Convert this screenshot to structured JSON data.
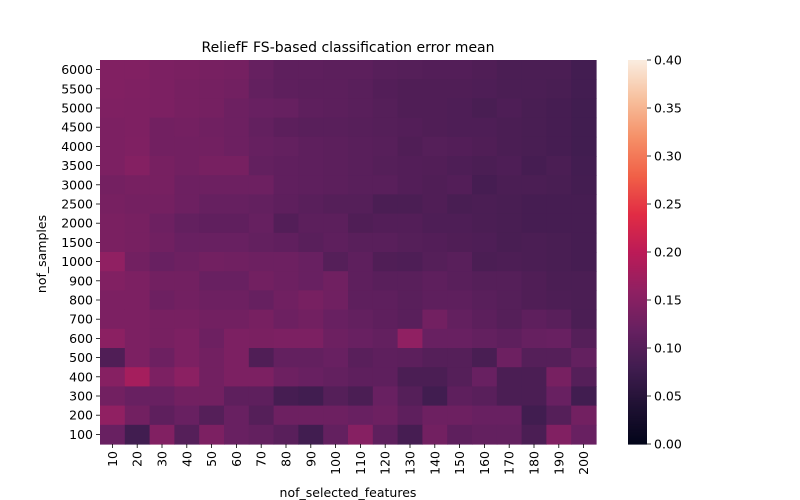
{
  "chart_data": {
    "type": "heatmap",
    "title": "ReliefF FS-based classification error mean",
    "xlabel": "nof_selected_features",
    "ylabel": "nof_samples",
    "x_categories": [
      "10",
      "20",
      "30",
      "40",
      "50",
      "60",
      "70",
      "80",
      "90",
      "100",
      "110",
      "120",
      "130",
      "140",
      "150",
      "160",
      "170",
      "180",
      "190",
      "200"
    ],
    "y_categories": [
      "6000",
      "5500",
      "5000",
      "4500",
      "4000",
      "3500",
      "3000",
      "2500",
      "2000",
      "1500",
      "1000",
      "900",
      "800",
      "700",
      "600",
      "500",
      "400",
      "300",
      "200",
      "100"
    ],
    "value_range": [
      0.0,
      0.4
    ],
    "colormap": "rocket",
    "colorbar_ticks": [
      "0.00",
      "0.05",
      "0.10",
      "0.15",
      "0.20",
      "0.25",
      "0.30",
      "0.35",
      "0.40"
    ],
    "values": [
      [
        0.145,
        0.145,
        0.14,
        0.138,
        0.135,
        0.133,
        0.118,
        0.11,
        0.11,
        0.108,
        0.108,
        0.103,
        0.1,
        0.098,
        0.098,
        0.095,
        0.09,
        0.09,
        0.09,
        0.082
      ],
      [
        0.145,
        0.143,
        0.14,
        0.135,
        0.133,
        0.13,
        0.115,
        0.11,
        0.108,
        0.108,
        0.105,
        0.098,
        0.095,
        0.095,
        0.095,
        0.093,
        0.09,
        0.09,
        0.088,
        0.082
      ],
      [
        0.143,
        0.142,
        0.14,
        0.135,
        0.133,
        0.125,
        0.12,
        0.118,
        0.11,
        0.108,
        0.105,
        0.1,
        0.095,
        0.095,
        0.093,
        0.088,
        0.093,
        0.088,
        0.085,
        0.08
      ],
      [
        0.14,
        0.142,
        0.13,
        0.132,
        0.128,
        0.125,
        0.115,
        0.108,
        0.105,
        0.105,
        0.103,
        0.1,
        0.098,
        0.095,
        0.093,
        0.093,
        0.09,
        0.088,
        0.085,
        0.08
      ],
      [
        0.14,
        0.143,
        0.13,
        0.13,
        0.13,
        0.125,
        0.118,
        0.115,
        0.11,
        0.108,
        0.105,
        0.103,
        0.095,
        0.1,
        0.098,
        0.095,
        0.09,
        0.088,
        0.085,
        0.08
      ],
      [
        0.14,
        0.148,
        0.135,
        0.13,
        0.135,
        0.135,
        0.115,
        0.112,
        0.11,
        0.108,
        0.105,
        0.1,
        0.098,
        0.097,
        0.093,
        0.09,
        0.093,
        0.085,
        0.09,
        0.082
      ],
      [
        0.132,
        0.135,
        0.135,
        0.125,
        0.125,
        0.125,
        0.125,
        0.112,
        0.11,
        0.108,
        0.105,
        0.105,
        0.098,
        0.095,
        0.098,
        0.085,
        0.09,
        0.09,
        0.088,
        0.083
      ],
      [
        0.135,
        0.132,
        0.132,
        0.125,
        0.118,
        0.118,
        0.115,
        0.11,
        0.105,
        0.1,
        0.1,
        0.09,
        0.09,
        0.095,
        0.088,
        0.09,
        0.088,
        0.085,
        0.085,
        0.085
      ],
      [
        0.138,
        0.135,
        0.125,
        0.115,
        0.112,
        0.112,
        0.118,
        0.098,
        0.108,
        0.108,
        0.095,
        0.098,
        0.098,
        0.093,
        0.093,
        0.09,
        0.088,
        0.085,
        0.085,
        0.085
      ],
      [
        0.138,
        0.135,
        0.128,
        0.12,
        0.12,
        0.12,
        0.115,
        0.112,
        0.105,
        0.11,
        0.105,
        0.105,
        0.1,
        0.098,
        0.095,
        0.093,
        0.088,
        0.09,
        0.088,
        0.085
      ],
      [
        0.16,
        0.13,
        0.12,
        0.125,
        0.13,
        0.128,
        0.125,
        0.125,
        0.12,
        0.1,
        0.11,
        0.095,
        0.093,
        0.1,
        0.105,
        0.09,
        0.092,
        0.09,
        0.088,
        0.085
      ],
      [
        0.145,
        0.14,
        0.13,
        0.13,
        0.12,
        0.12,
        0.13,
        0.125,
        0.12,
        0.128,
        0.11,
        0.105,
        0.105,
        0.11,
        0.105,
        0.1,
        0.1,
        0.095,
        0.09,
        0.09
      ],
      [
        0.14,
        0.14,
        0.125,
        0.13,
        0.125,
        0.125,
        0.118,
        0.128,
        0.135,
        0.128,
        0.11,
        0.11,
        0.105,
        0.11,
        0.11,
        0.105,
        0.1,
        0.095,
        0.092,
        0.09
      ],
      [
        0.14,
        0.14,
        0.135,
        0.135,
        0.13,
        0.13,
        0.135,
        0.125,
        0.13,
        0.12,
        0.115,
        0.11,
        0.105,
        0.13,
        0.115,
        0.108,
        0.1,
        0.11,
        0.105,
        0.09
      ],
      [
        0.155,
        0.14,
        0.135,
        0.14,
        0.125,
        0.14,
        0.138,
        0.14,
        0.14,
        0.125,
        0.12,
        0.115,
        0.16,
        0.12,
        0.12,
        0.115,
        0.11,
        0.118,
        0.12,
        0.1
      ],
      [
        0.095,
        0.14,
        0.125,
        0.14,
        0.13,
        0.14,
        0.095,
        0.115,
        0.115,
        0.12,
        0.105,
        0.11,
        0.108,
        0.1,
        0.1,
        0.088,
        0.125,
        0.1,
        0.1,
        0.115
      ],
      [
        0.15,
        0.18,
        0.14,
        0.155,
        0.13,
        0.14,
        0.14,
        0.125,
        0.12,
        0.115,
        0.11,
        0.11,
        0.09,
        0.09,
        0.1,
        0.12,
        0.09,
        0.09,
        0.135,
        0.1
      ],
      [
        0.13,
        0.12,
        0.12,
        0.13,
        0.13,
        0.11,
        0.11,
        0.085,
        0.08,
        0.1,
        0.09,
        0.12,
        0.1,
        0.08,
        0.11,
        0.105,
        0.09,
        0.09,
        0.12,
        0.08
      ],
      [
        0.16,
        0.13,
        0.11,
        0.12,
        0.1,
        0.12,
        0.1,
        0.125,
        0.125,
        0.125,
        0.12,
        0.125,
        0.11,
        0.125,
        0.125,
        0.12,
        0.12,
        0.08,
        0.1,
        0.13
      ],
      [
        0.12,
        0.08,
        0.145,
        0.1,
        0.14,
        0.12,
        0.115,
        0.105,
        0.08,
        0.115,
        0.15,
        0.11,
        0.085,
        0.13,
        0.11,
        0.115,
        0.115,
        0.09,
        0.145,
        0.12
      ]
    ]
  }
}
